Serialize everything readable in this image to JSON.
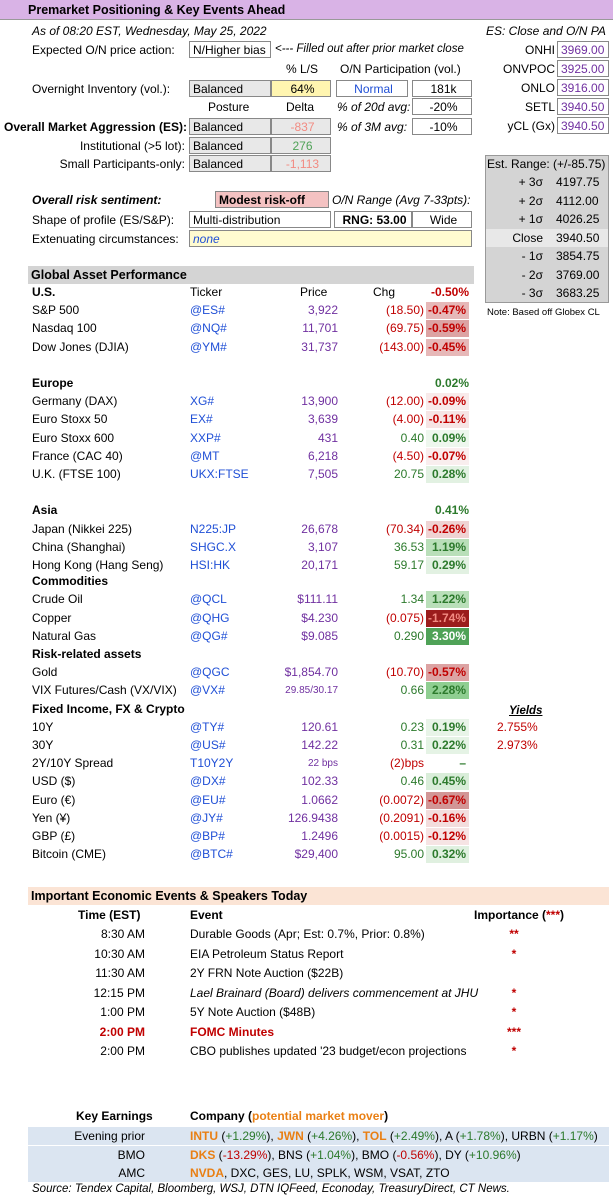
{
  "header": {
    "title": "Premarket Positioning & Key Events Ahead"
  },
  "meta": {
    "asof": "As of 08:20 EST, Wednesday, May 25, 2022",
    "es_note": "ES: Close and O/N PA"
  },
  "on_action": {
    "label": "Expected O/N price action:",
    "value": "N/Higher bias",
    "note": "<--- Filled out after prior market close"
  },
  "es_levels": [
    {
      "label": "ONHI",
      "value": "3969.00"
    },
    {
      "label": "ONVPOC",
      "value": "3925.00"
    },
    {
      "label": "ONLO",
      "value": "3916.00"
    },
    {
      "label": "SETL",
      "value": "3940.50"
    },
    {
      "label": "yCL (Gx)",
      "value": "3940.50"
    }
  ],
  "inventory": {
    "col_ls": "% L/S",
    "col_part": "O/N Participation (vol.)",
    "label": "Overnight Inventory (vol.):",
    "balance": "Balanced",
    "pct": "64%",
    "part": "Normal",
    "vol": "181k",
    "pct20_label": "% of 20d avg:",
    "pct20": "-20%",
    "pct3m_label": "% of 3M avg:",
    "pct3m": "-10%"
  },
  "aggression": {
    "col_posture": "Posture",
    "col_delta": "Delta",
    "rows": [
      {
        "label": "Overall Market Aggression (ES):",
        "posture": "Balanced",
        "delta": "-837"
      },
      {
        "label": "Institutional (>5 lot):",
        "posture": "Balanced",
        "delta": "276"
      },
      {
        "label": "Small Participants-only:",
        "posture": "Balanced",
        "delta": "-1,113"
      }
    ]
  },
  "sentiment": {
    "label": "Overall risk sentiment:",
    "value": "Modest risk-off",
    "range_label": "O/N Range (Avg 7-33pts):",
    "shape_label": "Shape of profile (ES/S&P):",
    "shape": "Multi-distribution",
    "rng": "RNG: 53.00",
    "width": "Wide",
    "ext_label": "Extenuating circumstances:",
    "ext": "none"
  },
  "est_range": {
    "title": "Est. Range: (+/-85.75)",
    "rows": [
      {
        "label": "+ 3σ",
        "value": "4197.75"
      },
      {
        "label": "+ 2σ",
        "value": "4112.00"
      },
      {
        "label": "+ 1σ",
        "value": "4026.25"
      },
      {
        "label": "Close",
        "value": "3940.50"
      },
      {
        "label": "- 1σ",
        "value": "3854.75"
      },
      {
        "label": "- 2σ",
        "value": "3769.00"
      },
      {
        "label": "- 3σ",
        "value": "3683.25"
      }
    ],
    "note": "Note: Based off Globex CL"
  },
  "gap": {
    "title": "Global Asset Performance",
    "col_ticker": "Ticker",
    "col_price": "Price",
    "col_chg": "Chg",
    "yields_label": "Yields"
  },
  "sections": [
    {
      "name": "U.S.",
      "total": "-0.50%",
      "total_color": "#c00000",
      "rows": [
        {
          "name": "S&P 500",
          "ticker": "@ES#",
          "price": "3,922",
          "chg": "(18.50)",
          "pct": "-0.47%",
          "bg": "#e6b8b8",
          "fc": "#c00000"
        },
        {
          "name": "Nasdaq 100",
          "ticker": "@NQ#",
          "price": "11,701",
          "chg": "(69.75)",
          "pct": "-0.59%",
          "bg": "#dca3a3",
          "fc": "#c00000"
        },
        {
          "name": "Dow Jones (DJIA)",
          "ticker": "@YM#",
          "price": "31,737",
          "chg": "(143.00)",
          "pct": "-0.45%",
          "bg": "#e6b8b8",
          "fc": "#c00000"
        }
      ]
    },
    {
      "name": "Europe",
      "total": "0.02%",
      "total_color": "#2c7a2c",
      "rows": [
        {
          "name": "Germany (DAX)",
          "ticker": "XG#",
          "price": "13,900",
          "chg": "(12.00)",
          "pct": "-0.09%",
          "bg": "#f8eaea",
          "fc": "#c00000"
        },
        {
          "name": "Euro Stoxx 50",
          "ticker": "EX#",
          "price": "3,639",
          "chg": "(4.00)",
          "pct": "-0.11%",
          "bg": "#f6e4e4",
          "fc": "#c00000"
        },
        {
          "name": "Euro Stoxx 600",
          "ticker": "XXP#",
          "price": "431",
          "chg": "0.40",
          "pct": "0.09%",
          "bg": "#eef7ee",
          "fc": "#2c7a2c"
        },
        {
          "name": "France (CAC 40)",
          "ticker": "@MT",
          "price": "6,218",
          "chg": "(4.50)",
          "pct": "-0.07%",
          "bg": "#f9eeee",
          "fc": "#c00000"
        },
        {
          "name": "U.K. (FTSE 100)",
          "ticker": "UKX:FTSE",
          "price": "7,505",
          "chg": "20.75",
          "pct": "0.28%",
          "bg": "#e2f1e2",
          "fc": "#2c7a2c"
        }
      ]
    },
    {
      "name": "Asia",
      "total": "0.41%",
      "total_color": "#2c7a2c",
      "rows": [
        {
          "name": "Japan (Nikkei 225)",
          "ticker": "N225:JP",
          "price": "26,678",
          "chg": "(70.34)",
          "pct": "-0.26%",
          "bg": "#efd3d3",
          "fc": "#c00000"
        },
        {
          "name": "China (Shanghai)",
          "ticker": "SHGC.X",
          "price": "3,107",
          "chg": "36.53",
          "pct": "1.19%",
          "bg": "#b9dfb9",
          "fc": "#2c7a2c"
        },
        {
          "name": "Hong Kong (Hang Seng)",
          "ticker": "HSI:HK",
          "price": "20,171",
          "chg": "59.17",
          "pct": "0.29%",
          "bg": "#e2f1e2",
          "fc": "#2c7a2c"
        }
      ]
    },
    {
      "name": "Commodities",
      "total": "",
      "rows": [
        {
          "name": "Crude Oil",
          "ticker": "@QCL",
          "price": "$111.11",
          "chg": "1.34",
          "pct": "1.22%",
          "bg": "#b9dfb9",
          "fc": "#2c7a2c"
        },
        {
          "name": "Copper",
          "ticker": "@QHG",
          "price": "$4.230",
          "chg": "(0.075)",
          "pct": "-1.74%",
          "bg": "#9b1c1c",
          "fc": "#f28b82"
        },
        {
          "name": "Natural Gas",
          "ticker": "@QG#",
          "price": "$9.085",
          "chg": "0.290",
          "pct": "3.30%",
          "bg": "#4fa257",
          "fc": "#ffffff"
        }
      ]
    },
    {
      "name": "Risk-related assets",
      "total": "",
      "rows": [
        {
          "name": "Gold",
          "ticker": "@QGC",
          "price": "$1,854.70",
          "chg": "(10.70)",
          "pct": "-0.57%",
          "bg": "#dca3a3",
          "fc": "#c00000"
        },
        {
          "name": "VIX Futures/Cash (VX/VIX)",
          "ticker": "@VX#",
          "price": "29.85/30.17",
          "chg": "0.66",
          "pct": "2.28%",
          "bg": "#8fce91",
          "fc": "#2c7a2c",
          "small": true
        }
      ]
    },
    {
      "name": "Fixed Income, FX & Crypto",
      "total": "",
      "rows": [
        {
          "name": "10Y",
          "ticker": "@TY#",
          "price": "120.61",
          "chg": "0.23",
          "pct": "0.19%",
          "bg": "#e8f4e8",
          "fc": "#2c7a2c",
          "yield": "2.755%"
        },
        {
          "name": "30Y",
          "ticker": "@US#",
          "price": "142.22",
          "chg": "0.31",
          "pct": "0.22%",
          "bg": "#e5f3e5",
          "fc": "#2c7a2c",
          "yield": "2.973%"
        },
        {
          "name": "2Y/10Y Spread",
          "ticker": "T10Y2Y",
          "price": "22 bps",
          "chg": "(2)bps",
          "pct": "–",
          "bg": "#ffffff",
          "fc": "#2c7a2c",
          "small": true
        },
        {
          "name": "USD ($)",
          "ticker": "@DX#",
          "price": "102.33",
          "chg": "0.46",
          "pct": "0.45%",
          "bg": "#d9edd9",
          "fc": "#2c7a2c"
        },
        {
          "name": "Euro (€)",
          "ticker": "@EU#",
          "price": "1.0662",
          "chg": "(0.0072)",
          "pct": "-0.67%",
          "bg": "#d29696",
          "fc": "#c00000"
        },
        {
          "name": "Yen (¥)",
          "ticker": "@JY#",
          "price": "126.9438",
          "chg": "(0.2091)",
          "pct": "-0.16%",
          "bg": "#f3dddd",
          "fc": "#c00000"
        },
        {
          "name": "GBP (£)",
          "ticker": "@BP#",
          "price": "1.2496",
          "chg": "(0.0015)",
          "pct": "-0.12%",
          "bg": "#f6e4e4",
          "fc": "#c00000"
        },
        {
          "name": "Bitcoin (CME)",
          "ticker": "@BTC#",
          "price": "$29,400",
          "chg": "95.00",
          "pct": "0.32%",
          "bg": "#e0f0e0",
          "fc": "#2c7a2c"
        }
      ]
    }
  ],
  "events": {
    "title": "Important Economic Events & Speakers Today",
    "col_time": "Time (EST)",
    "col_event": "Event",
    "col_imp": "Importance (",
    "col_imp_stars": "***",
    "col_imp_end": ")",
    "rows": [
      {
        "time": "8:30 AM",
        "event": "Durable Goods (Apr; Est: 0.7%, Prior: 0.8%)",
        "imp": "**",
        "italic": false,
        "red": false
      },
      {
        "time": "10:30 AM",
        "event": "EIA Petroleum Status Report",
        "imp": "*",
        "italic": false,
        "red": false
      },
      {
        "time": "11:30 AM",
        "event": "2Y FRN Note Auction ($22B)",
        "imp": "",
        "italic": false,
        "red": false
      },
      {
        "time": "12:15 PM",
        "event": "Lael Brainard (Board) delivers commencement at JHU",
        "imp": "*",
        "italic": true,
        "red": false
      },
      {
        "time": "1:00 PM",
        "event": "5Y Note Auction ($48B)",
        "imp": "*",
        "italic": false,
        "red": false
      },
      {
        "time": "2:00 PM",
        "event": "FOMC Minutes",
        "imp": "***",
        "italic": false,
        "red": true
      },
      {
        "time": "2:00 PM",
        "event": "CBO publishes updated '23 budget/econ projections",
        "imp": "*",
        "italic": false,
        "red": false
      }
    ]
  },
  "earnings": {
    "col_key": "Key Earnings",
    "col_company": "Company (",
    "col_mover": "potential market mover",
    "col_end": ")",
    "rows": [
      {
        "when": "Evening prior",
        "items": [
          {
            "t": "INTU",
            "c": "#e97f13",
            "b": true
          },
          {
            "t": " (",
            "c": "#000"
          },
          {
            "t": "+1.29%",
            "c": "#2c7a2c"
          },
          {
            "t": "), ",
            "c": "#000"
          },
          {
            "t": "JWN",
            "c": "#e97f13",
            "b": true
          },
          {
            "t": " (",
            "c": "#000"
          },
          {
            "t": "+4.26%",
            "c": "#2c7a2c"
          },
          {
            "t": "), ",
            "c": "#000"
          },
          {
            "t": "TOL",
            "c": "#e97f13",
            "b": true
          },
          {
            "t": " (",
            "c": "#000"
          },
          {
            "t": "+2.49%",
            "c": "#2c7a2c"
          },
          {
            "t": "), A (",
            "c": "#000"
          },
          {
            "t": "+1.78%",
            "c": "#2c7a2c"
          },
          {
            "t": "), URBN (",
            "c": "#000"
          },
          {
            "t": "+1.17%",
            "c": "#2c7a2c"
          },
          {
            "t": ")",
            "c": "#000"
          }
        ]
      },
      {
        "when": "BMO",
        "items": [
          {
            "t": "DKS",
            "c": "#e97f13",
            "b": true
          },
          {
            "t": " (",
            "c": "#000"
          },
          {
            "t": "-13.29%",
            "c": "#c00000"
          },
          {
            "t": "), BNS (",
            "c": "#000"
          },
          {
            "t": "+1.04%",
            "c": "#2c7a2c"
          },
          {
            "t": "), BMO (",
            "c": "#000"
          },
          {
            "t": "-0.56%",
            "c": "#c00000"
          },
          {
            "t": "), DY (",
            "c": "#000"
          },
          {
            "t": "+10.96%",
            "c": "#2c7a2c"
          },
          {
            "t": ")",
            "c": "#000"
          }
        ]
      },
      {
        "when": "AMC",
        "items": [
          {
            "t": "NVDA",
            "c": "#e97f13",
            "b": true
          },
          {
            "t": ", DXC, GES, LU, SPLK, WSM, VSAT, ZTO",
            "c": "#000"
          }
        ]
      }
    ]
  },
  "source": "Source: Tendex Capital, Bloomberg, WSJ, DTN IQFeed, Econoday, TreasuryDirect, CT News."
}
